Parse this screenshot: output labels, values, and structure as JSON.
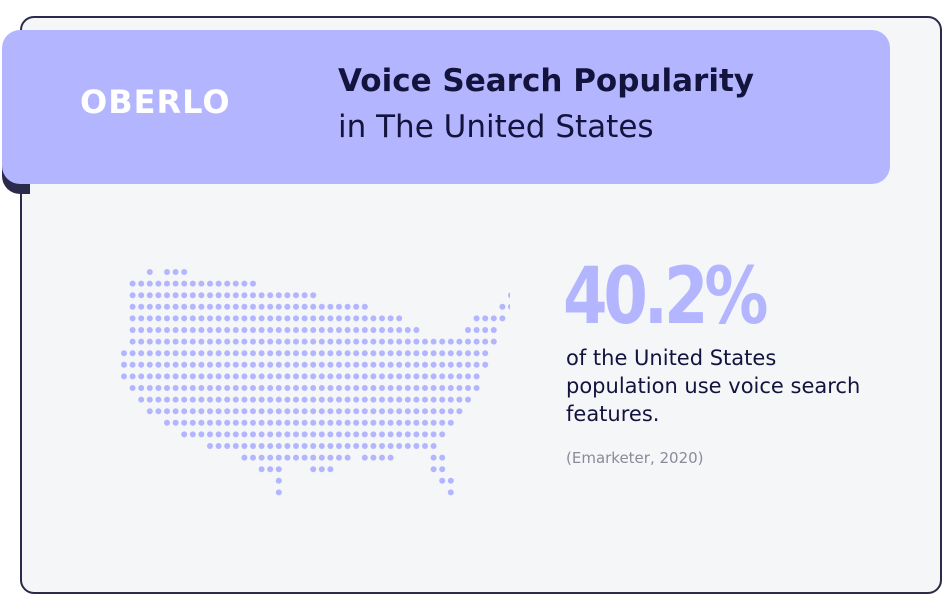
{
  "brand": {
    "logo_text": "OBERLO"
  },
  "header": {
    "title": "Voice Search Popularity",
    "subtitle": "in The United States"
  },
  "stat": {
    "value_text": "40.2%",
    "description": "of the United States population use voice search features.",
    "source": "(Emarketer, 2020)"
  },
  "colors": {
    "accent": "#b3b6ff",
    "text": "#13133d",
    "card_background": "#f5f6f8",
    "border": "#2a2a4a",
    "source_text": "#8a8a9a"
  },
  "icons": {
    "map": "us-dot-map-icon"
  }
}
